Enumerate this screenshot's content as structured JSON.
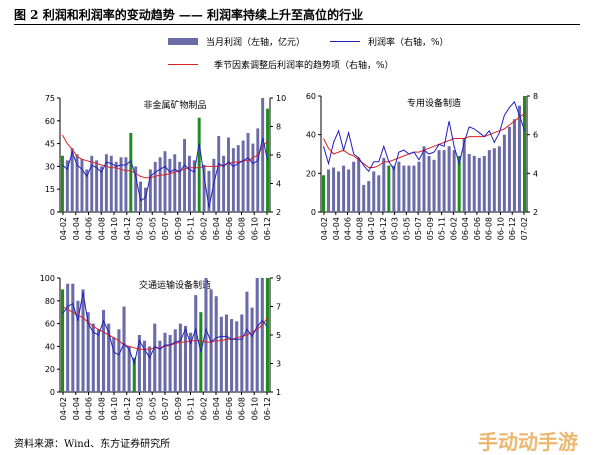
{
  "figure": {
    "title": "图 2  利润和利润率的变动趋势 —— 利润率持续上升至高位的行业",
    "source": "资料来源：Wind、东方证券研究所",
    "watermark": "手动动手游"
  },
  "legend": {
    "bar_label": "当月利润（左轴，亿元）",
    "rate_label": "利润率（右轴，%）",
    "adj_label": "季节因素调整后利润率的趋势项（右轴，%）"
  },
  "colors": {
    "bar": "#6b6ba8",
    "bar_highlight": "#1f8a1f",
    "rate": "#1f1fbf",
    "adj": "#e02020"
  },
  "chart_data": [
    {
      "type": "bar",
      "title": "非金属矿物制品",
      "x_tick_labels": [
        "04-02",
        "04-04",
        "04-06",
        "04-08",
        "04-10",
        "04-12",
        "05-03",
        "05-05",
        "05-07",
        "05-09",
        "05-11",
        "06-02",
        "06-04",
        "06-06",
        "06-08",
        "06-10",
        "06-12"
      ],
      "ylim_left": [
        0,
        75
      ],
      "yticks_left": [
        0,
        15,
        30,
        45,
        60,
        75
      ],
      "ylim_right": [
        2,
        10
      ],
      "yticks_right": [
        2,
        4,
        6,
        8,
        10
      ],
      "profit": [
        37,
        34,
        42,
        38,
        35,
        28,
        37,
        34,
        30,
        38,
        37,
        33,
        36,
        36,
        52,
        30,
        20,
        16,
        28,
        33,
        36,
        40,
        35,
        38,
        33,
        48,
        37,
        34,
        62,
        31,
        27,
        35,
        50,
        37,
        49,
        42,
        44,
        47,
        52,
        45,
        55,
        77,
        68
      ],
      "highlight": [
        0,
        14,
        28,
        42
      ],
      "rate": [
        5.3,
        5.0,
        6.2,
        5.3,
        5.0,
        4.5,
        5.3,
        5.1,
        4.8,
        5.5,
        5.4,
        5.2,
        5.3,
        5.3,
        5.6,
        4.5,
        2.8,
        3.0,
        4.5,
        4.8,
        5.0,
        5.2,
        4.8,
        5.0,
        4.8,
        5.3,
        5.0,
        4.8,
        6.8,
        4.5,
        2.3,
        4.0,
        5.4,
        5.2,
        5.5,
        5.2,
        5.4,
        5.6,
        5.8,
        5.4,
        5.6,
        7.2,
        5.6
      ],
      "adj": [
        7.4,
        6.8,
        6.4,
        5.9,
        5.7,
        5.6,
        5.5,
        5.4,
        5.3,
        5.2,
        5.1,
        5.1,
        5.0,
        4.9,
        4.9,
        4.7,
        4.5,
        4.4,
        4.4,
        4.5,
        4.6,
        4.6,
        4.7,
        4.8,
        4.9,
        5.0,
        5.1,
        5.1,
        5.1,
        5.2,
        5.2,
        5.2,
        5.2,
        5.3,
        5.4,
        5.5,
        5.5,
        5.6,
        5.6,
        5.8,
        6.0,
        6.6,
        7.0
      ]
    },
    {
      "type": "bar",
      "title": "专用设备制造",
      "x_tick_labels": [
        "04-02",
        "04-04",
        "04-06",
        "04-08",
        "04-10",
        "04-12",
        "05-03",
        "05-05",
        "05-07",
        "05-09",
        "05-11",
        "06-02",
        "06-04",
        "06-06",
        "06-08",
        "06-10",
        "06-12",
        "07-02"
      ],
      "ylim_left": [
        0,
        60
      ],
      "yticks_left": [
        0,
        20,
        40,
        60
      ],
      "ylim_right": [
        2,
        8
      ],
      "yticks_right": [
        2,
        4,
        6,
        8
      ],
      "profit": [
        19,
        22,
        23,
        21,
        24,
        22,
        26,
        28,
        14,
        16,
        21,
        19,
        28,
        24,
        24,
        26,
        24,
        24,
        24,
        26,
        34,
        29,
        27,
        32,
        32,
        34,
        32,
        29,
        38,
        30,
        29,
        28,
        29,
        32,
        33,
        34,
        40,
        44,
        48,
        55,
        60
      ],
      "highlight": [
        0,
        13,
        27,
        40
      ],
      "rate": [
        5.4,
        4.5,
        5.6,
        6.2,
        5.2,
        6.1,
        5.0,
        4.8,
        4.4,
        4.1,
        4.6,
        4.6,
        5.4,
        4.6,
        4.2,
        5.1,
        5.2,
        5.0,
        5.1,
        4.7,
        5.2,
        5.0,
        5.1,
        5.5,
        5.4,
        6.7,
        5.4,
        4.5,
        5.6,
        6.4,
        6.3,
        6.1,
        5.9,
        6.2,
        5.6,
        6.1,
        7.0,
        7.4,
        7.7,
        7.0,
        6.2
      ],
      "adj": [
        5.8,
        5.3,
        5.0,
        5.1,
        5.2,
        5.0,
        4.9,
        4.7,
        4.5,
        4.3,
        4.3,
        4.4,
        4.6,
        4.6,
        4.7,
        4.8,
        4.9,
        5.0,
        5.1,
        5.1,
        5.2,
        5.3,
        5.4,
        5.5,
        5.6,
        5.7,
        5.8,
        5.8,
        5.8,
        5.9,
        5.9,
        5.9,
        5.9,
        6.0,
        6.1,
        6.2,
        6.3,
        6.5,
        6.7,
        6.9,
        7.1
      ]
    },
    {
      "type": "bar",
      "title": "交通运输设备制造",
      "x_tick_labels": [
        "04-02",
        "04-04",
        "04-06",
        "04-08",
        "04-10",
        "04-12",
        "05-03",
        "05-05",
        "05-07",
        "05-09",
        "05-11",
        "06-02",
        "06-04",
        "06-06",
        "06-08",
        "06-10",
        "06-12"
      ],
      "ylim_left": [
        0,
        100
      ],
      "yticks_left": [
        0,
        20,
        40,
        60,
        80,
        100
      ],
      "ylim_right": [
        1,
        9
      ],
      "yticks_right": [
        1,
        3,
        5,
        7,
        9
      ],
      "profit": [
        90,
        95,
        95,
        80,
        90,
        70,
        60,
        55,
        72,
        60,
        48,
        55,
        75,
        40,
        30,
        50,
        45,
        40,
        60,
        45,
        52,
        50,
        55,
        60,
        58,
        52,
        85,
        70,
        100,
        90,
        84,
        66,
        68,
        64,
        62,
        68,
        88,
        74,
        100,
        100,
        100
      ],
      "highlight": [
        0,
        14,
        27,
        40
      ],
      "rate": [
        6.5,
        7.0,
        7.2,
        6.0,
        8.0,
        5.8,
        5.2,
        5.0,
        6.0,
        5.2,
        3.8,
        3.6,
        4.4,
        4.0,
        3.0,
        4.6,
        4.0,
        3.4,
        4.2,
        4.0,
        4.3,
        4.3,
        4.5,
        4.6,
        5.4,
        4.4,
        5.4,
        3.8,
        5.4,
        4.5,
        4.8,
        4.9,
        4.9,
        4.7,
        4.7,
        4.7,
        5.4,
        4.9,
        5.6,
        6.0,
        5.6
      ],
      "adj": [
        7.0,
        6.8,
        6.6,
        6.4,
        6.2,
        5.9,
        5.6,
        5.4,
        5.2,
        5.0,
        4.8,
        4.6,
        4.3,
        4.2,
        4.1,
        4.0,
        4.0,
        4.0,
        4.1,
        4.1,
        4.2,
        4.3,
        4.4,
        4.5,
        4.5,
        4.6,
        4.6,
        4.6,
        4.5,
        4.5,
        4.6,
        4.6,
        4.7,
        4.7,
        4.8,
        4.9,
        5.0,
        5.2,
        5.4,
        5.7,
        6.2
      ]
    }
  ]
}
